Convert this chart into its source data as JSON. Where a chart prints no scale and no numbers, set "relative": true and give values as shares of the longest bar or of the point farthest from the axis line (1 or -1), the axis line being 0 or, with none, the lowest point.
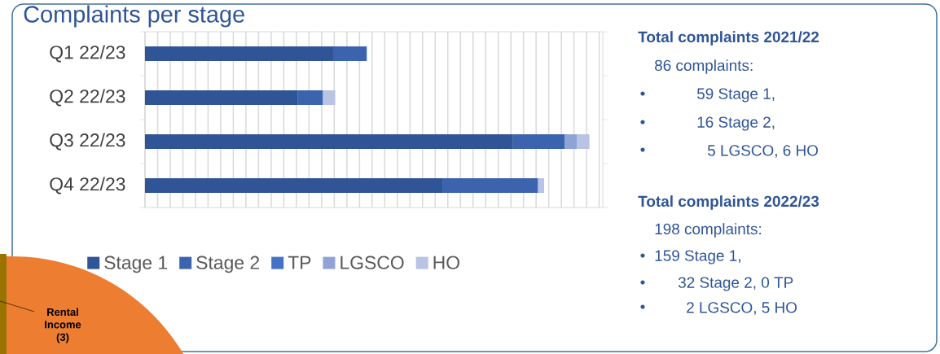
{
  "chart_data": {
    "type": "bar",
    "orientation": "horizontal",
    "stacked": true,
    "relative": true,
    "grid": "x",
    "legend": "bottom",
    "title": "Complaints per stage",
    "categories": [
      "Q1 22/23",
      "Q2 22/23",
      "Q3 22/23",
      "Q4 22/23"
    ],
    "series": [
      {
        "name": "Stage 1",
        "color": "#2f5597",
        "values": [
          0.425,
          0.343,
          0.828,
          0.669
        ]
      },
      {
        "name": "Stage 2",
        "color": "#3c64ae",
        "values": [
          0.074,
          0.057,
          0.116,
          0.215
        ]
      },
      {
        "name": "TP",
        "color": "#4472c4",
        "values": [
          0,
          0,
          0,
          0
        ]
      },
      {
        "name": "LGSCO",
        "color": "#8fa3d6",
        "values": [
          0,
          0,
          0.028,
          0
        ]
      },
      {
        "name": "HO",
        "color": "#b9c3e3",
        "values": [
          0,
          0.028,
          0.028,
          0.014
        ]
      }
    ],
    "annotations": [
      "Total complaints 2021/22",
      "86 complaints:",
      "59 Stage 1,",
      "16 Stage 2,",
      "5 LGSCO, 6 HO",
      "Total complaints 2022/23",
      "198 complaints:",
      "159 Stage 1,",
      "32 Stage 2,  0 TP",
      "2 LGSCO, 5 HO",
      "Rental Income (3)"
    ]
  }
}
